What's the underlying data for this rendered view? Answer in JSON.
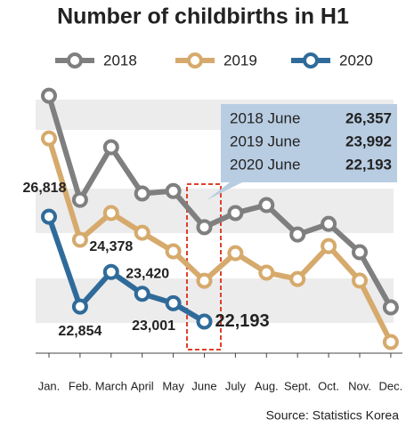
{
  "chart_data": {
    "type": "line",
    "title": "Number of childbirths in H1",
    "categories": [
      "Jan.",
      "Feb.",
      "March",
      "April",
      "May",
      "June",
      "July",
      "Aug.",
      "Sept.",
      "Oct.",
      "Nov.",
      "Dec."
    ],
    "series": [
      {
        "name": "2018",
        "color": "#7f7f7f",
        "values": [
          32150,
          27560,
          29880,
          27840,
          27950,
          26357,
          26980,
          27330,
          26030,
          26500,
          25250,
          22820
        ]
      },
      {
        "name": "2019",
        "color": "#d6aa6c",
        "values": [
          30270,
          25800,
          26980,
          26110,
          25290,
          23992,
          25210,
          24350,
          24070,
          25520,
          24000,
          21290
        ]
      },
      {
        "name": "2020",
        "color": "#2f6b9a",
        "values": [
          26818,
          22854,
          24378,
          23420,
          23001,
          22193,
          null,
          null,
          null,
          null,
          null,
          null
        ],
        "value_labels": [
          "26,818",
          "22,854",
          "24,378",
          "23,420",
          "23,001",
          "22,193",
          null,
          null,
          null,
          null,
          null,
          null
        ]
      }
    ],
    "ylim": [
      20800,
      32450
    ],
    "callout": [
      {
        "label": "2018 June",
        "value": "26,357"
      },
      {
        "label": "2019 June",
        "value": "23,992"
      },
      {
        "label": "2020 June",
        "value": "22,193"
      }
    ],
    "source": "Source: Statistics Korea"
  }
}
